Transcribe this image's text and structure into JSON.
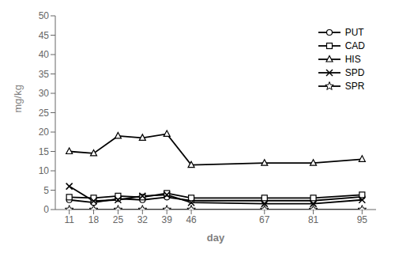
{
  "chart_data": {
    "type": "line",
    "x_label": "day",
    "y_label": "mg/kg",
    "x": [
      11,
      18,
      25,
      32,
      39,
      46,
      67,
      81,
      95
    ],
    "xlim": [
      7,
      99
    ],
    "xticks": [
      11,
      18,
      25,
      32,
      39,
      46,
      67,
      81,
      95
    ],
    "ylim": [
      0,
      50
    ],
    "yticks": [
      0,
      5,
      10,
      15,
      20,
      25,
      30,
      35,
      40,
      45,
      50
    ],
    "grid": false,
    "legend": "upper right",
    "series": [
      {
        "name": "PUT",
        "color": "black",
        "marker": "circle",
        "values": [
          2.5,
          1.8,
          2.8,
          2.5,
          3.2,
          2.3,
          2.3,
          2.3,
          3.3
        ]
      },
      {
        "name": "CAD",
        "color": "black",
        "marker": "square",
        "values": [
          3.2,
          3.0,
          3.5,
          3.2,
          4.2,
          3.0,
          3.0,
          3.0,
          3.8
        ]
      },
      {
        "name": "HIS",
        "color": "black",
        "marker": "triangle",
        "values": [
          15.0,
          14.5,
          19.0,
          18.5,
          19.5,
          11.5,
          12.0,
          12.0,
          13.0
        ]
      },
      {
        "name": "SPD",
        "color": "black",
        "marker": "x",
        "values": [
          6.0,
          2.2,
          2.5,
          3.5,
          3.8,
          1.8,
          1.5,
          1.5,
          2.5
        ]
      },
      {
        "name": "SPR",
        "color": "black",
        "marker": "star",
        "values": [
          0.0,
          0.0,
          0.0,
          0.0,
          0.0,
          0.0,
          0.0,
          0.0,
          0.0
        ]
      }
    ]
  }
}
